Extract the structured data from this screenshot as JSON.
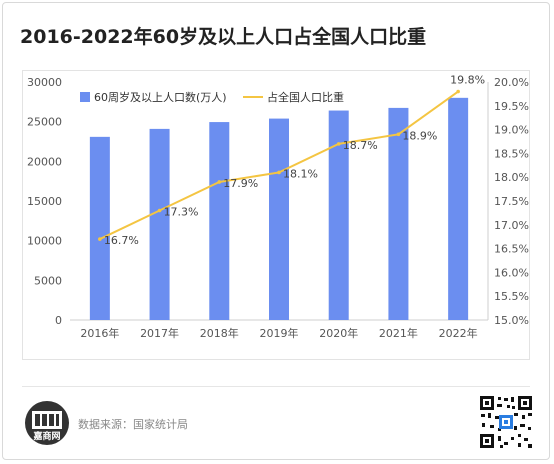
{
  "page": {
    "title": "2016-2022年60岁及以上人口占全国人口比重",
    "source": "数据来源：国家统计局",
    "logo_text": "嘉商网"
  },
  "chart_data": {
    "type": "bar",
    "categories": [
      "2016年",
      "2017年",
      "2018年",
      "2019年",
      "2020年",
      "2021年",
      "2022年"
    ],
    "series": [
      {
        "name": "60周岁及以上人口数(万人)",
        "type": "bar",
        "axis": "left",
        "values": [
          23086,
          24090,
          24949,
          25388,
          26402,
          26736,
          28004
        ],
        "color": "#6b8ef0"
      },
      {
        "name": "占全国人口比重",
        "type": "line",
        "axis": "right",
        "values": [
          16.7,
          17.3,
          17.9,
          18.1,
          18.7,
          18.9,
          19.8
        ],
        "color": "#f4c542",
        "labels": [
          "16.7%",
          "17.3%",
          "17.9%",
          "18.1%",
          "18.7%",
          "18.9%",
          "19.8%"
        ]
      }
    ],
    "left_axis": {
      "ticks": [
        "0",
        "5000",
        "10000",
        "15000",
        "20000",
        "25000",
        "30000"
      ],
      "ylim": [
        0,
        30000
      ]
    },
    "right_axis": {
      "ticks": [
        "15.0%",
        "15.5%",
        "16.0%",
        "16.5%",
        "17.0%",
        "17.5%",
        "18.0%",
        "18.5%",
        "19.0%",
        "19.5%",
        "20.0%"
      ],
      "ylim": [
        15.0,
        20.0
      ]
    },
    "grid": false,
    "legend": "top-left"
  }
}
